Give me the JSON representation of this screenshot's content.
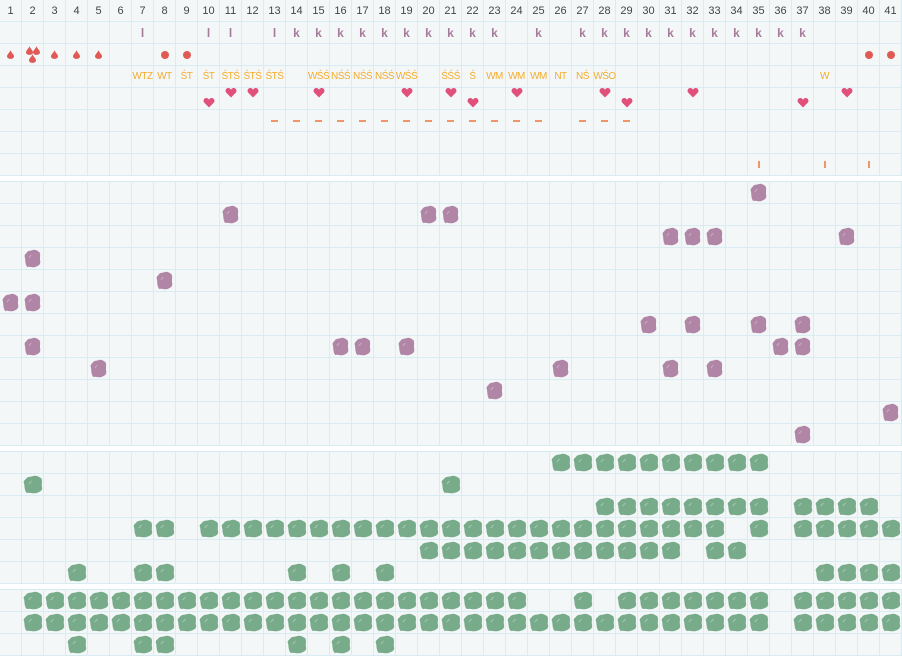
{
  "columns": [
    "1",
    "2",
    "3",
    "4",
    "5",
    "6",
    "7",
    "8",
    "9",
    "10",
    "11",
    "12",
    "13",
    "14",
    "15",
    "16",
    "17",
    "18",
    "19",
    "20",
    "21",
    "22",
    "23",
    "24",
    "25",
    "26",
    "27",
    "28",
    "29",
    "30",
    "31",
    "32",
    "33",
    "34",
    "35",
    "36",
    "37",
    "38",
    "39",
    "40",
    "41"
  ],
  "colors": {
    "grid_bg": "#f3f7f8",
    "grid_line": "#d9ebf3",
    "purple": "#b085a6",
    "green": "#78ab8a",
    "heart": "#e0507a",
    "drop": "#e05a55",
    "code": "#f5ac2a",
    "mark": "#a77c9b",
    "dash": "#f29469"
  },
  "top": {
    "marks_row": {
      "7": "l",
      "10": "l",
      "11": "l",
      "13": "l",
      "14": "k",
      "15": "k",
      "16": "k",
      "17": "k",
      "18": "k",
      "19": "k",
      "20": "k",
      "21": "k",
      "22": "k",
      "23": "k",
      "25": "k",
      "27": "k",
      "28": "k",
      "29": "k",
      "30": "k",
      "31": "k",
      "32": "k",
      "33": "k",
      "34": "k",
      "35": "k",
      "36": "k",
      "37": "k"
    },
    "drops_row": {
      "1": "drop-icon",
      "2": "triple-drop-icon",
      "3": "drop-icon",
      "4": "drop-icon",
      "5": "drop-icon",
      "8": "dot-icon",
      "9": "dot-icon",
      "40": "dot-icon",
      "41": "dot-icon"
    },
    "codes_row": {
      "7": "WTZ",
      "8": "WT",
      "9": "ŚT",
      "10": "ŚT",
      "11": "ŚTŚ",
      "12": "ŚTŚ",
      "13": "ŚTŚ",
      "15": "WŚŚ",
      "16": "NŚŚ",
      "17": "NŚŚ",
      "18": "NŚŚ",
      "19": "WŚŚ",
      "21": "ŚŚŚ",
      "22": "Ś",
      "23": "WM",
      "24": "WM",
      "25": "WM",
      "26": "NT",
      "27": "NŚ",
      "28": "WŚO",
      "38": "W"
    },
    "hearts_upper": [
      11,
      12,
      15,
      19,
      21,
      24,
      28,
      32,
      39
    ],
    "hearts_lower": [
      10,
      22,
      29,
      37
    ],
    "dashes": [
      13,
      14,
      15,
      16,
      17,
      18,
      19,
      20,
      21,
      22,
      23,
      24,
      25,
      27,
      28,
      29
    ],
    "ticks": [
      35,
      38,
      40
    ]
  },
  "purple_rows": [
    [
      35
    ],
    [
      11,
      20,
      21
    ],
    [
      31,
      32,
      33,
      39
    ],
    [
      2
    ],
    [
      8
    ],
    [
      1,
      2
    ],
    [
      30,
      32,
      35,
      37
    ],
    [
      2,
      16,
      17,
      19,
      36,
      37
    ],
    [
      5,
      26,
      31,
      33
    ],
    [
      23
    ],
    [
      41
    ],
    [
      37
    ]
  ],
  "green_rows": [
    [
      26,
      27,
      28,
      29,
      30,
      31,
      32,
      33,
      34,
      35
    ],
    [
      2,
      21
    ],
    [
      28,
      29,
      30,
      31,
      32,
      33,
      34,
      35,
      37,
      38,
      39,
      40
    ],
    [
      7,
      8,
      10,
      11,
      12,
      13,
      14,
      15,
      16,
      17,
      18,
      19,
      20,
      21,
      22,
      23,
      24,
      25,
      26,
      27,
      28,
      29,
      30,
      31,
      32,
      33,
      35,
      37,
      38,
      39,
      40,
      41
    ],
    [
      20,
      21,
      22,
      23,
      24,
      25,
      26,
      27,
      28,
      29,
      30,
      31,
      33,
      34
    ],
    [
      4,
      7,
      8,
      14,
      16,
      18,
      38,
      39,
      40,
      41
    ]
  ],
  "green2_rows": [
    [
      2,
      3,
      4,
      5,
      6,
      7,
      8,
      9,
      10,
      11,
      12,
      13,
      14,
      15,
      16,
      17,
      18,
      19,
      20,
      21,
      22,
      23,
      24,
      27,
      29,
      30,
      31,
      32,
      33,
      34,
      35,
      37,
      38,
      39,
      40,
      41
    ],
    [
      2,
      3,
      4,
      5,
      6,
      7,
      8,
      9,
      10,
      11,
      12,
      13,
      14,
      15,
      16,
      17,
      18,
      19,
      20,
      21,
      22,
      23,
      24,
      25,
      26,
      27,
      28,
      29,
      30,
      31,
      32,
      33,
      34,
      35,
      37,
      38,
      39,
      40,
      41
    ],
    [
      4,
      7,
      8,
      14,
      16,
      18
    ]
  ]
}
